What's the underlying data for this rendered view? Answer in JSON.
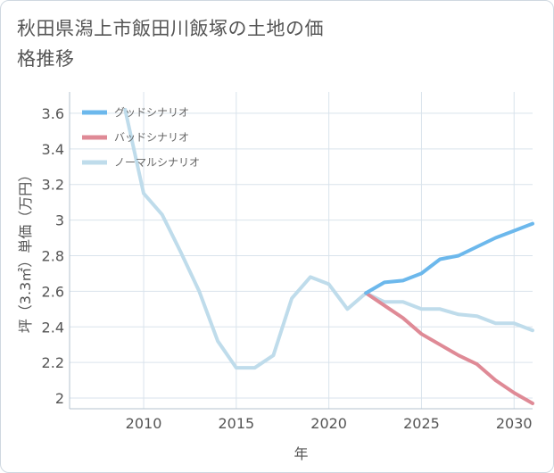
{
  "title": "秋田県潟上市飯田川飯塚の土地の価格推移",
  "chart_data": {
    "type": "line",
    "title": "秋田県潟上市飯田川飯塚の土地の価格推移",
    "xlabel": "年",
    "ylabel": "坪（3.3㎡）単価（万円）",
    "xlim": [
      2006,
      2031
    ],
    "ylim": [
      1.94,
      3.72
    ],
    "x_ticks": [
      2010,
      2015,
      2020,
      2025,
      2030
    ],
    "y_ticks": [
      2,
      2.2,
      2.4,
      2.6,
      2.8,
      3,
      3.2,
      3.4,
      3.6
    ],
    "y_tick_labels": [
      "2",
      "2.2",
      "2.4",
      "2.6",
      "2.8",
      "3",
      "3.2",
      "3.4",
      "3.6"
    ],
    "grid": true,
    "legend_position": "top-left",
    "series": [
      {
        "name": "グッドシナリオ",
        "color": "#6cb8ec",
        "x": [
          2022,
          2023,
          2024,
          2025,
          2026,
          2027,
          2028,
          2029,
          2030,
          2031
        ],
        "y": [
          2.59,
          2.65,
          2.66,
          2.7,
          2.78,
          2.8,
          2.85,
          2.9,
          2.94,
          2.98
        ]
      },
      {
        "name": "バッドシナリオ",
        "color": "#df8a96",
        "x": [
          2022,
          2023,
          2024,
          2025,
          2026,
          2027,
          2028,
          2029,
          2030,
          2031
        ],
        "y": [
          2.59,
          2.52,
          2.45,
          2.36,
          2.3,
          2.24,
          2.19,
          2.1,
          2.03,
          1.97
        ]
      },
      {
        "name": "ノーマルシナリオ",
        "color": "#bfdceb",
        "x": [
          2009,
          2010,
          2011,
          2012,
          2013,
          2014,
          2015,
          2016,
          2017,
          2018,
          2019,
          2020,
          2021,
          2022,
          2023,
          2024,
          2025,
          2026,
          2027,
          2028,
          2029,
          2030,
          2031
        ],
        "y": [
          3.62,
          3.15,
          3.03,
          2.82,
          2.6,
          2.32,
          2.17,
          2.17,
          2.24,
          2.56,
          2.68,
          2.64,
          2.5,
          2.59,
          2.54,
          2.54,
          2.5,
          2.5,
          2.47,
          2.46,
          2.42,
          2.42,
          2.38
        ]
      }
    ]
  }
}
